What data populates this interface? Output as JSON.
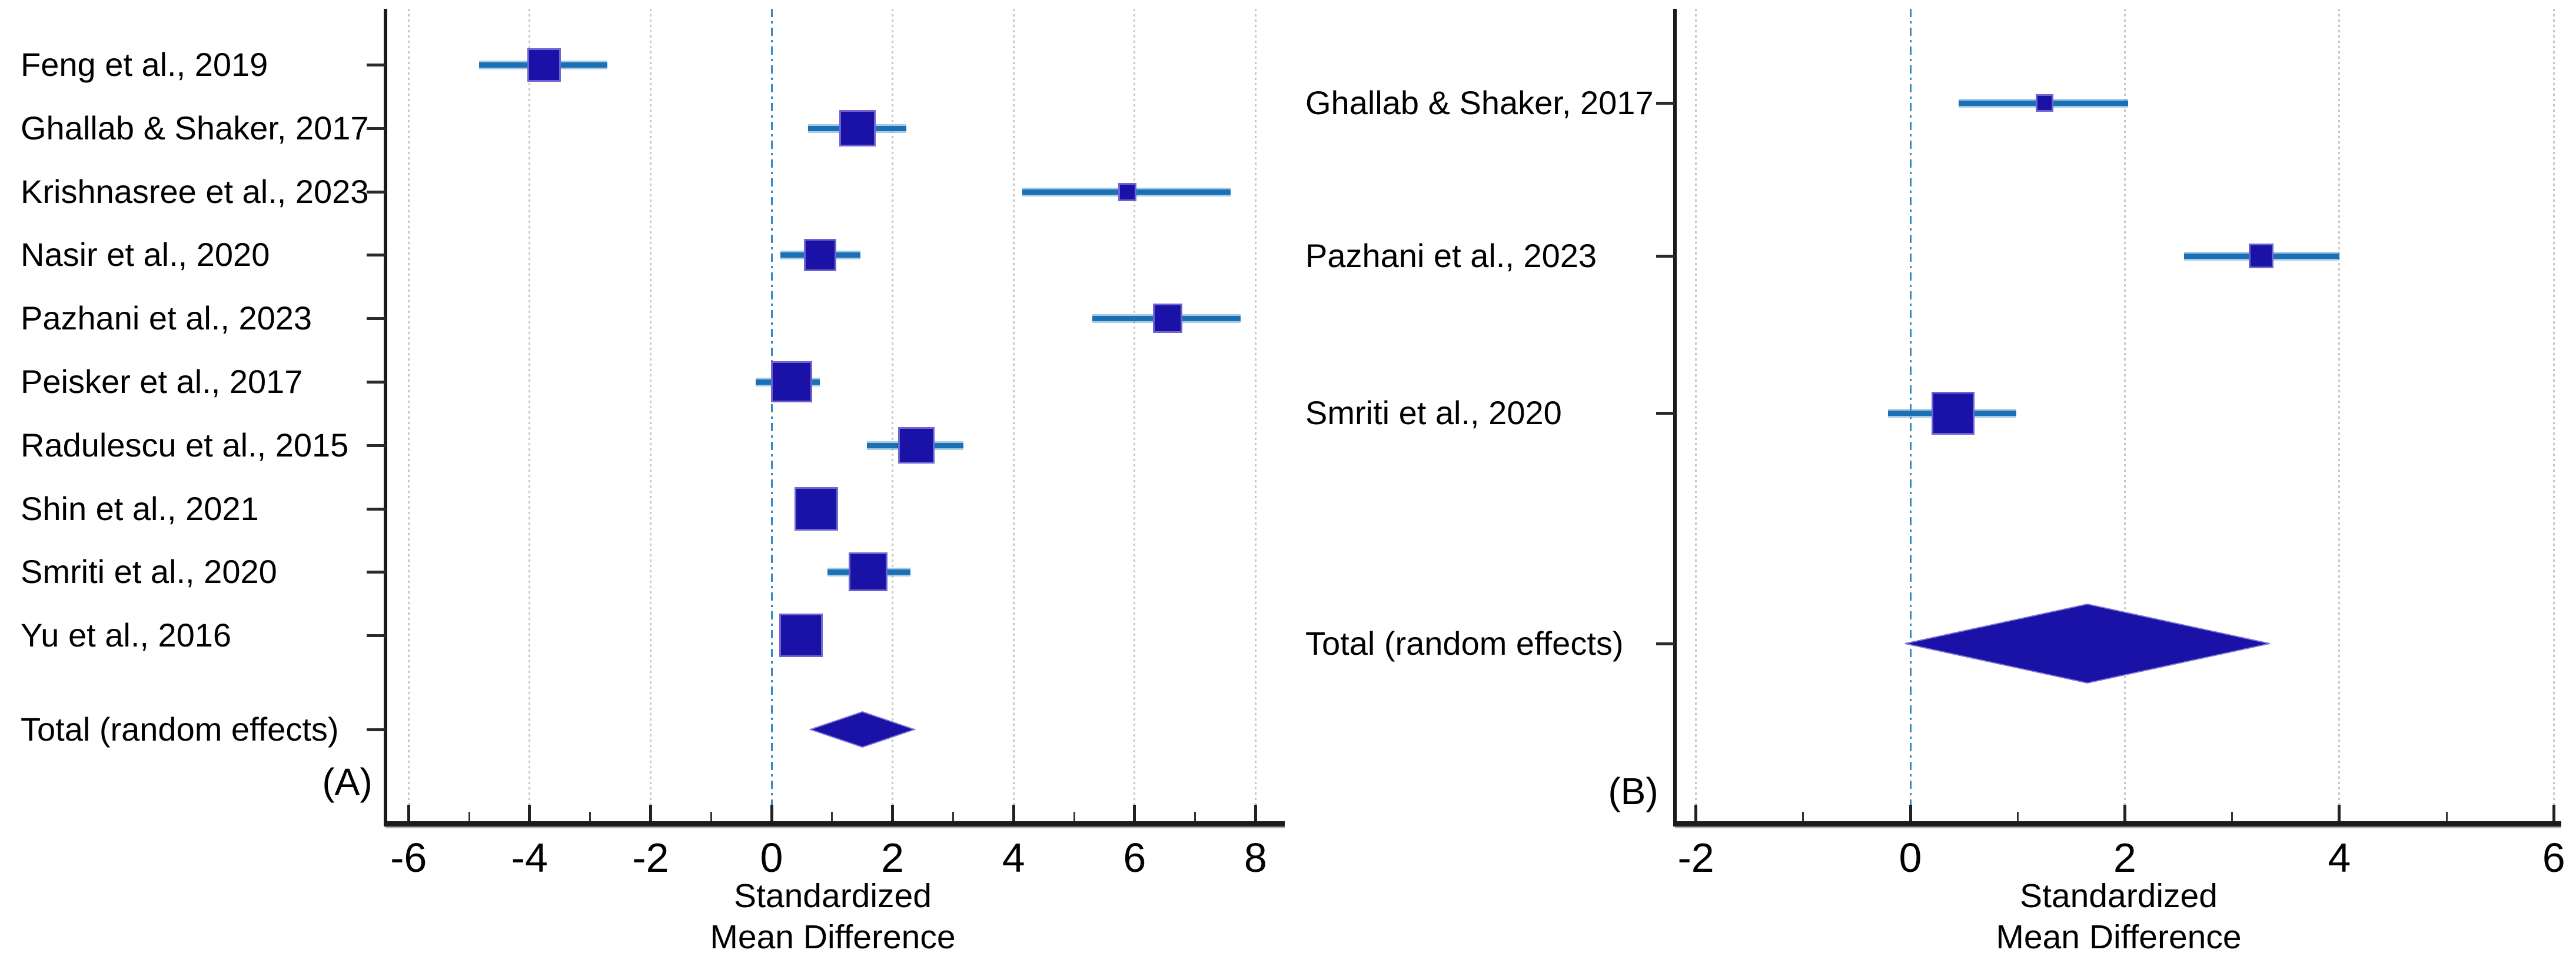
{
  "figure": {
    "kind": "forest-plot-meta-analysis",
    "background": "#ffffff",
    "colors": {
      "marker_fill": "#1a12a7",
      "marker_edge": "#7e74d8",
      "ci_line": "#1b6fb5",
      "zero_line": "#2f86c6",
      "gridline": "#c7c7c7",
      "axis": "#1c1c1c",
      "text": "#000000"
    }
  },
  "chart_data": [
    {
      "type": "forest",
      "panel_letter": "(A)",
      "effect_measure": "Standardized Mean Difference",
      "xlabel_lines": [
        "Standardized",
        "Mean Difference"
      ],
      "xlim": [
        -6.4,
        8.5
      ],
      "x_tick_values": [
        -6,
        -4,
        -2,
        0,
        2,
        4,
        6,
        8
      ],
      "x_tick_labels": [
        "-6",
        "-4",
        "-2",
        "0",
        "2",
        "4",
        "6",
        "8"
      ],
      "x_minor_tick_values": [
        -5,
        -3,
        -1,
        1,
        3,
        5,
        7
      ],
      "zero_reference": 0,
      "grid": "vertical-dotted-at-major-ticks",
      "studies": [
        {
          "label": "Feng et al., 2019",
          "smd": -3.76,
          "ci": [
            -4.83,
            -2.71
          ],
          "marker_size_px": 57
        },
        {
          "label": "Ghallab & Shaker, 2017",
          "smd": 1.42,
          "ci": [
            0.6,
            2.23
          ],
          "marker_size_px": 62
        },
        {
          "label": "Krishnasree et al., 2023",
          "smd": 5.88,
          "ci": [
            4.14,
            7.59
          ],
          "marker_size_px": 31
        },
        {
          "label": "Nasir et al., 2020",
          "smd": 0.8,
          "ci": [
            0.15,
            1.47
          ],
          "marker_size_px": 55
        },
        {
          "label": "Pazhani et al., 2023",
          "smd": 6.55,
          "ci": [
            5.3,
            7.75
          ],
          "marker_size_px": 50
        },
        {
          "label": "Peisker et al., 2017",
          "smd": 0.33,
          "ci": [
            -0.26,
            0.8
          ],
          "marker_size_px": 70
        },
        {
          "label": "Radulescu et al., 2015",
          "smd": 2.39,
          "ci": [
            1.58,
            3.17
          ],
          "marker_size_px": 62
        },
        {
          "label": "Shin et al., 2021",
          "smd": 0.74,
          "ci": [
            0.38,
            1.1
          ],
          "marker_size_px": 74
        },
        {
          "label": "Smriti et al., 2020",
          "smd": 1.6,
          "ci": [
            0.92,
            2.3
          ],
          "marker_size_px": 66
        },
        {
          "label": "Yu et al., 2016",
          "smd": 0.49,
          "ci": [
            0.13,
            0.85
          ],
          "marker_size_px": 74
        }
      ],
      "total": {
        "label": "Total (random effects)",
        "smd": 1.5,
        "ci": [
          0.64,
          2.36
        ]
      }
    },
    {
      "type": "forest",
      "panel_letter": "(B)",
      "effect_measure": "Standardized Mean Difference",
      "xlabel_lines": [
        "Standardized",
        "Mean Difference"
      ],
      "xlim": [
        -2.2,
        6.1
      ],
      "x_tick_values": [
        -2,
        0,
        2,
        4,
        6
      ],
      "x_tick_labels": [
        "-2",
        "0",
        "2",
        "4",
        "6"
      ],
      "x_minor_tick_values": [
        -1,
        1,
        3,
        5
      ],
      "zero_reference": 0,
      "grid": "vertical-dotted-at-major-ticks",
      "studies": [
        {
          "label": "Ghallab & Shaker, 2017",
          "smd": 1.25,
          "ci": [
            0.45,
            2.03
          ],
          "marker_size_px": 30
        },
        {
          "label": "Pazhani et al., 2023",
          "smd": 3.27,
          "ci": [
            2.55,
            4.0
          ],
          "marker_size_px": 42
        },
        {
          "label": "Smriti et al., 2020",
          "smd": 0.4,
          "ci": [
            -0.21,
            0.99
          ],
          "marker_size_px": 73
        }
      ],
      "total": {
        "label": "Total (random effects)",
        "smd": 1.63,
        "ci": [
          -0.05,
          3.35
        ]
      }
    }
  ]
}
